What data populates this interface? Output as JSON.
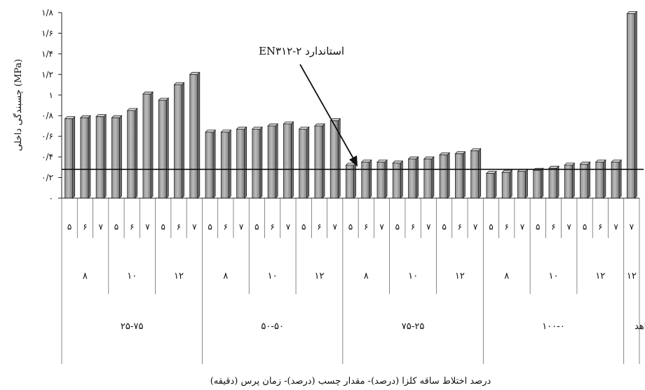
{
  "chart_data": {
    "type": "bar",
    "title": "",
    "ylabel": "چسبندگی داخلی (MPa)",
    "xlabel": "درصد اختلاط ساقه کلزا (درصد)- مقدار چسب (درصد)- زمان پرس (دقیقه)",
    "ylim": [
      0,
      1.8
    ],
    "yticks": [
      0,
      0.2,
      0.4,
      0.6,
      0.8,
      1,
      1.2,
      1.4,
      1.6,
      1.8
    ],
    "ytick_labels": [
      "۰",
      "۰/۲",
      "۰/۴",
      "۰/۶",
      "۰/۸",
      "۱",
      "۱/۲",
      "۱/۴",
      "۱/۶",
      "۱/۸"
    ],
    "grid": false,
    "categories": [
      "۵",
      "۶",
      "۷",
      "۵",
      "۶",
      "۷",
      "۵",
      "۶",
      "۷",
      "۵",
      "۶",
      "۷",
      "۵",
      "۶",
      "۷",
      "۵",
      "۶",
      "۷",
      "۵",
      "۶",
      "۷",
      "۵",
      "۶",
      "۷",
      "۵",
      "۶",
      "۷",
      "۵",
      "۶",
      "۷",
      "۵",
      "۶",
      "۷",
      "۵",
      "۶",
      "۷",
      "۷"
    ],
    "values": [
      0.77,
      0.78,
      0.79,
      0.78,
      0.85,
      1.01,
      0.95,
      1.1,
      1.2,
      0.64,
      0.64,
      0.67,
      0.67,
      0.7,
      0.72,
      0.67,
      0.7,
      0.75,
      0.32,
      0.35,
      0.35,
      0.34,
      0.38,
      0.38,
      0.42,
      0.43,
      0.46,
      0.24,
      0.25,
      0.26,
      0.27,
      0.29,
      0.32,
      0.33,
      0.35,
      0.35,
      1.79
    ],
    "glue_groups": [
      {
        "label": "۸",
        "span": 3
      },
      {
        "label": "۱۰",
        "span": 3
      },
      {
        "label": "۱۲",
        "span": 3
      },
      {
        "label": "۸",
        "span": 3
      },
      {
        "label": "۱۰",
        "span": 3
      },
      {
        "label": "۱۲",
        "span": 3
      },
      {
        "label": "۸",
        "span": 3
      },
      {
        "label": "۱۰",
        "span": 3
      },
      {
        "label": "۱۲",
        "span": 3
      },
      {
        "label": "۸",
        "span": 3
      },
      {
        "label": "۱۰",
        "span": 3
      },
      {
        "label": "۱۲",
        "span": 3
      },
      {
        "label": "۱۲",
        "span": 1
      }
    ],
    "mix_groups": [
      {
        "label": "۲۵-۷۵",
        "span": 9
      },
      {
        "label": "۵۰-۵۰",
        "span": 9
      },
      {
        "label": "۷۵-۲۵",
        "span": 9
      },
      {
        "label": "۱۰۰-۰",
        "span": 9
      },
      {
        "label": "نمونه شاهد",
        "span": 1
      }
    ],
    "reference_line": {
      "value": 0.28,
      "label": "استاندارد EN۳۱۲-۲"
    }
  }
}
